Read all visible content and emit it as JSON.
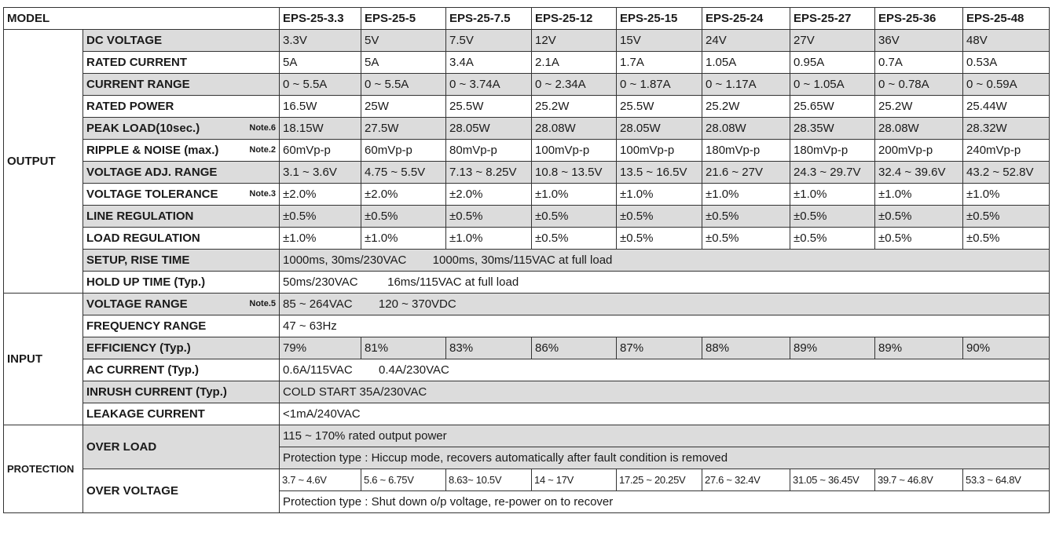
{
  "header": {
    "model_label": "MODEL",
    "models": [
      "EPS-25-3.3",
      "EPS-25-5",
      "EPS-25-7.5",
      "EPS-25-12",
      "EPS-25-15",
      "EPS-25-24",
      "EPS-25-27",
      "EPS-25-36",
      "EPS-25-48"
    ]
  },
  "output": {
    "group_label": "OUTPUT",
    "dc_voltage": {
      "label": "DC VOLTAGE",
      "values": [
        "3.3V",
        "5V",
        "7.5V",
        "12V",
        "15V",
        "24V",
        "27V",
        "36V",
        "48V"
      ]
    },
    "rated_current": {
      "label": "RATED CURRENT",
      "values": [
        "5A",
        "5A",
        "3.4A",
        "2.1A",
        "1.7A",
        "1.05A",
        "0.95A",
        "0.7A",
        "0.53A"
      ]
    },
    "current_range": {
      "label": "CURRENT RANGE",
      "values": [
        "0 ~ 5.5A",
        "0 ~ 5.5A",
        "0 ~ 3.74A",
        "0 ~ 2.34A",
        "0 ~ 1.87A",
        "0 ~ 1.17A",
        "0 ~ 1.05A",
        "0 ~ 0.78A",
        "0 ~ 0.59A"
      ]
    },
    "rated_power": {
      "label": "RATED POWER",
      "values": [
        "16.5W",
        "25W",
        "25.5W",
        "25.2W",
        "25.5W",
        "25.2W",
        "25.65W",
        "25.2W",
        "25.44W"
      ]
    },
    "peak_load": {
      "label": "PEAK LOAD(10sec.)",
      "note": "Note.6",
      "values": [
        "18.15W",
        "27.5W",
        "28.05W",
        "28.08W",
        "28.05W",
        "28.08W",
        "28.35W",
        "28.08W",
        "28.32W"
      ]
    },
    "ripple_noise": {
      "label": "RIPPLE & NOISE (max.)",
      "note": "Note.2",
      "values": [
        "60mVp-p",
        "60mVp-p",
        "80mVp-p",
        "100mVp-p",
        "100mVp-p",
        "180mVp-p",
        "180mVp-p",
        "200mVp-p",
        "240mVp-p"
      ]
    },
    "voltage_adj_range": {
      "label": "VOLTAGE ADJ. RANGE",
      "values": [
        "3.1 ~ 3.6V",
        "4.75 ~ 5.5V",
        "7.13 ~ 8.25V",
        "10.8 ~ 13.5V",
        "13.5 ~ 16.5V",
        "21.6 ~ 27V",
        "24.3 ~ 29.7V",
        "32.4 ~ 39.6V",
        "43.2 ~ 52.8V"
      ]
    },
    "voltage_tolerance": {
      "label": "VOLTAGE TOLERANCE",
      "note": "Note.3",
      "values": [
        "±2.0%",
        "±2.0%",
        "±2.0%",
        "±1.0%",
        "±1.0%",
        "±1.0%",
        "±1.0%",
        "±1.0%",
        "±1.0%"
      ]
    },
    "line_regulation": {
      "label": "LINE REGULATION",
      "values": [
        "±0.5%",
        "±0.5%",
        "±0.5%",
        "±0.5%",
        "±0.5%",
        "±0.5%",
        "±0.5%",
        "±0.5%",
        "±0.5%"
      ]
    },
    "load_regulation": {
      "label": "LOAD REGULATION",
      "values": [
        "±1.0%",
        "±1.0%",
        "±1.0%",
        "±0.5%",
        "±0.5%",
        "±0.5%",
        "±0.5%",
        "±0.5%",
        "±0.5%"
      ]
    },
    "setup_rise_time": {
      "label": "SETUP, RISE TIME",
      "value": "1000ms, 30ms/230VAC        1000ms, 30ms/115VAC at full load"
    },
    "hold_up_time": {
      "label": "HOLD UP TIME (Typ.)",
      "value": "50ms/230VAC         16ms/115VAC at full load"
    }
  },
  "input": {
    "group_label": "INPUT",
    "voltage_range": {
      "label": "VOLTAGE RANGE",
      "note": "Note.5",
      "value": "85 ~ 264VAC        120 ~ 370VDC"
    },
    "frequency_range": {
      "label": "FREQUENCY RANGE",
      "value": "47 ~ 63Hz"
    },
    "efficiency": {
      "label": "EFFICIENCY (Typ.)",
      "values": [
        "79%",
        "81%",
        "83%",
        "86%",
        "87%",
        "88%",
        "89%",
        "89%",
        "90%"
      ]
    },
    "ac_current": {
      "label": "AC CURRENT (Typ.)",
      "value": "0.6A/115VAC        0.4A/230VAC"
    },
    "inrush_current": {
      "label": "INRUSH CURRENT (Typ.)",
      "value": "COLD START 35A/230VAC"
    },
    "leakage_current": {
      "label": "LEAKAGE CURRENT",
      "value": "<1mA/240VAC"
    }
  },
  "protection": {
    "group_label": "PROTECTION",
    "over_load": {
      "label": "OVER LOAD",
      "line1": "115 ~ 170% rated output power",
      "line2": "Protection type : Hiccup mode, recovers automatically after fault condition is removed"
    },
    "over_voltage": {
      "label": "OVER VOLTAGE",
      "values": [
        "3.7 ~ 4.6V",
        "5.6 ~ 6.75V",
        "8.63~ 10.5V",
        "14 ~ 17V",
        "17.25 ~ 20.25V",
        "27.6 ~ 32.4V",
        "31.05 ~ 36.45V",
        "39.7 ~ 46.8V",
        "53.3 ~ 64.8V"
      ],
      "line2": "Protection type :  Shut down o/p voltage, re-power on to recover"
    }
  }
}
